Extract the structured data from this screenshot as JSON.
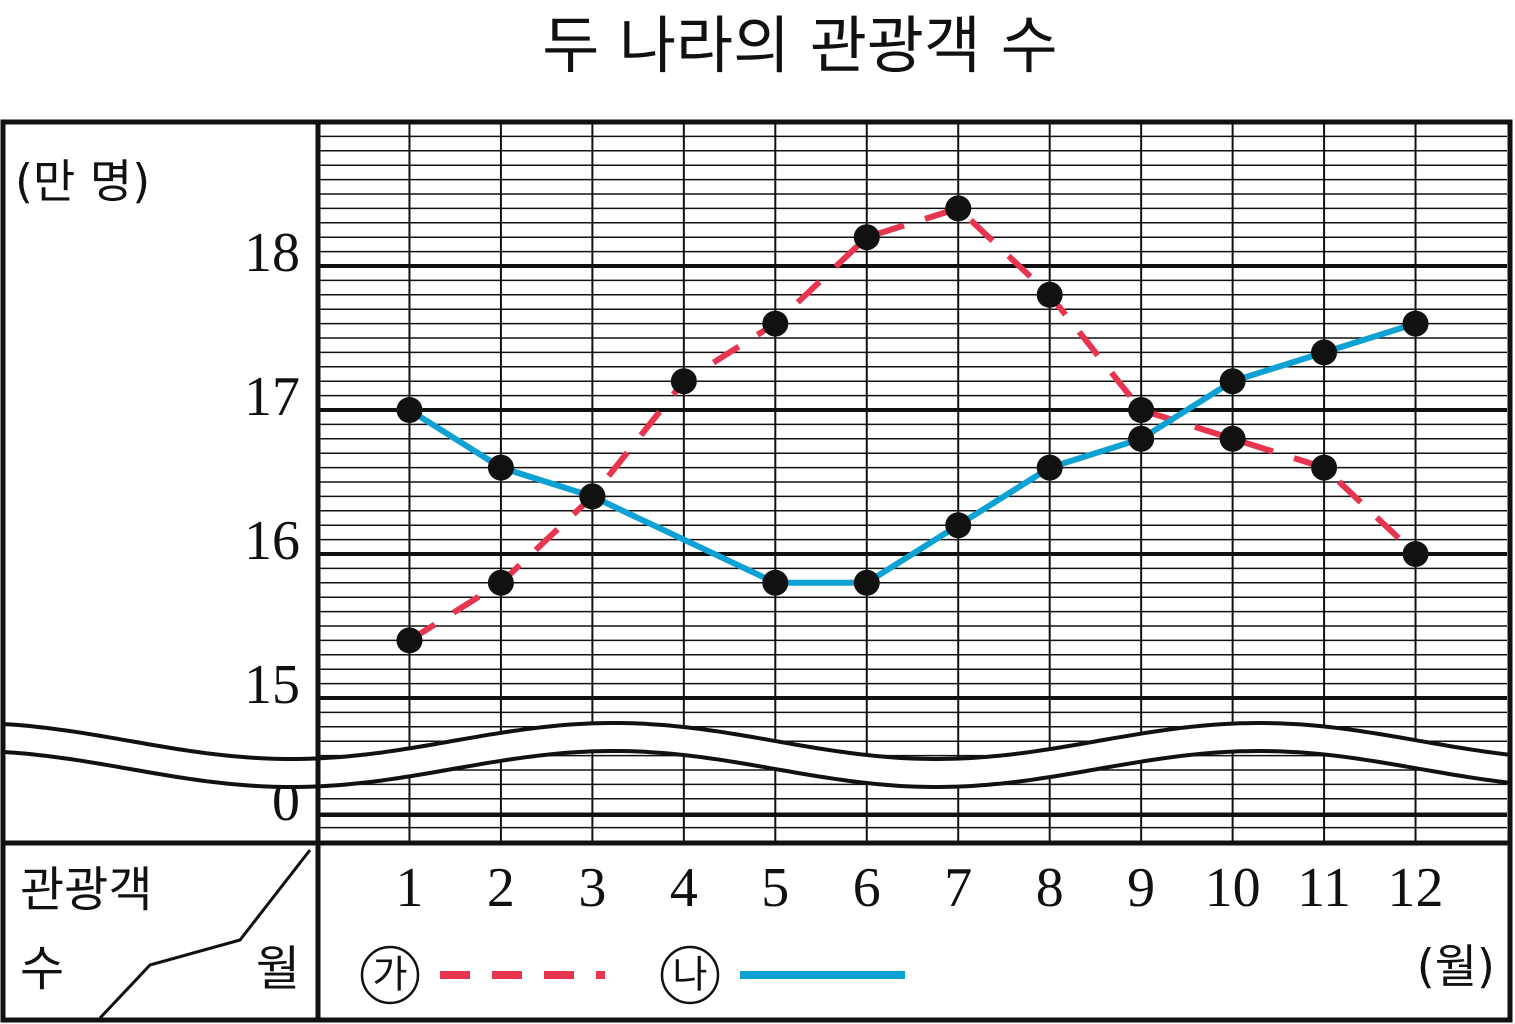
{
  "chart_data": {
    "type": "line",
    "title": "두 나라의 관광객 수",
    "y_unit": "(만 명)",
    "x_unit": "(월)",
    "corner_label": [
      "관광객",
      "수"
    ],
    "corner_x_label": "월",
    "xlim": [
      0,
      13
    ],
    "xticks": [
      1,
      2,
      3,
      4,
      5,
      6,
      7,
      8,
      9,
      10,
      11,
      12
    ],
    "ylim": [
      15,
      19
    ],
    "yticks": [
      0,
      15,
      16,
      17,
      18
    ],
    "axis_break": true,
    "grid": true,
    "series": [
      {
        "name": "가",
        "color": "#e8354f",
        "dash": true,
        "x": [
          1,
          2,
          3,
          4,
          5,
          6,
          7,
          8,
          9,
          10,
          11,
          12
        ],
        "values": [
          15.4,
          15.8,
          16.4,
          17.2,
          17.6,
          18.2,
          18.4,
          17.8,
          17.0,
          16.8,
          16.6,
          16.0
        ]
      },
      {
        "name": "나",
        "color": "#0ea2d4",
        "dash": false,
        "x": [
          1,
          2,
          3,
          5,
          6,
          7,
          8,
          9,
          10,
          11,
          12
        ],
        "values": [
          17.0,
          16.6,
          16.4,
          15.8,
          15.8,
          16.2,
          16.6,
          16.8,
          17.2,
          17.4,
          17.6
        ]
      }
    ]
  }
}
